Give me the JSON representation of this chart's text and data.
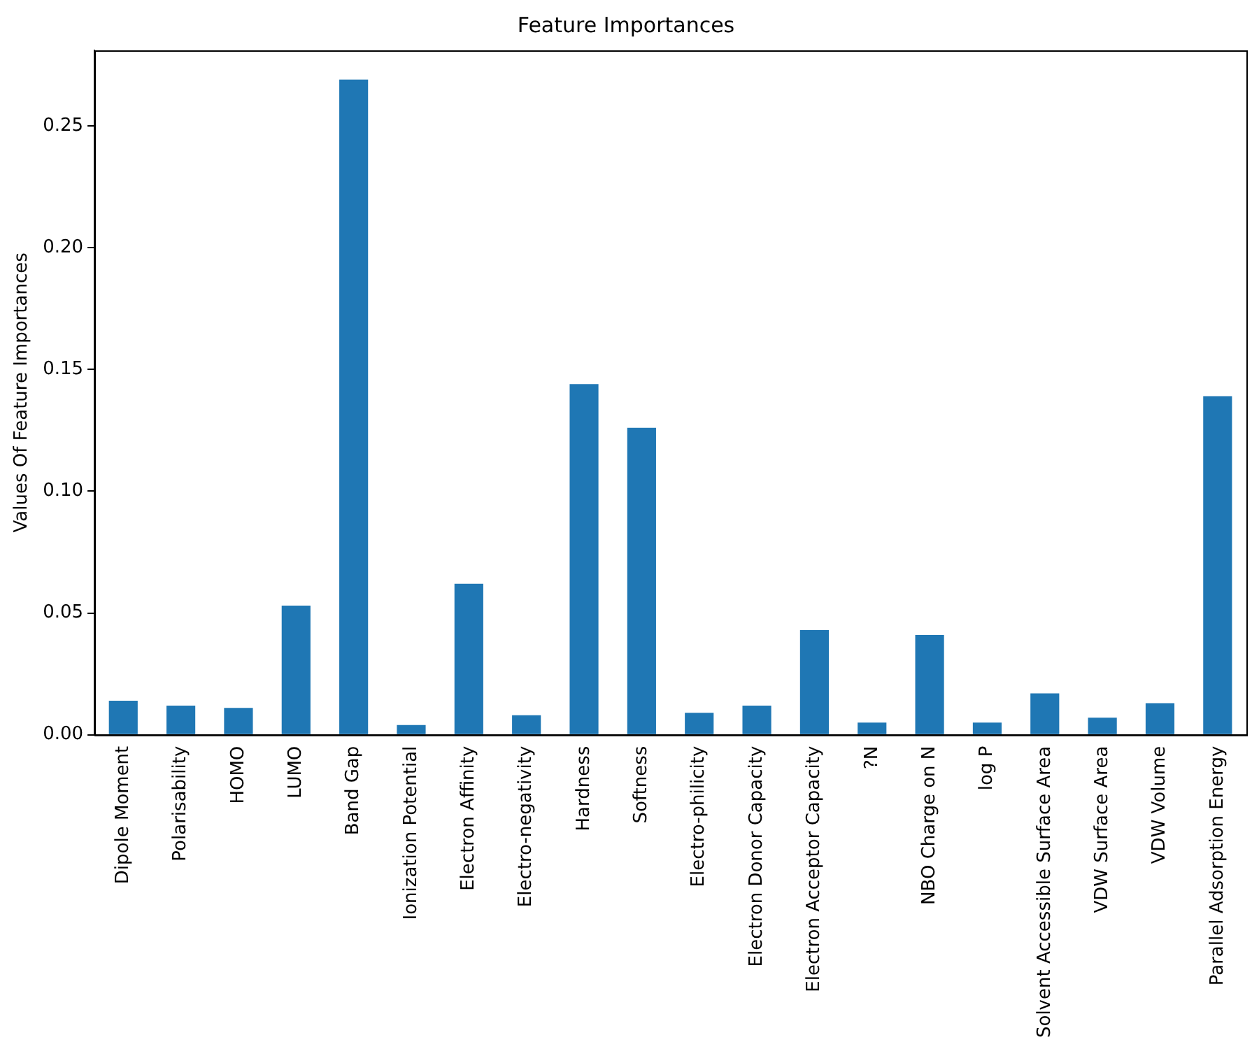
{
  "chart_data": {
    "type": "bar",
    "title": "Feature Importances",
    "ylabel": "Values Of Feature Importances",
    "categories": [
      "Dipole Moment",
      "Polarisability",
      "HOMO",
      "LUMO",
      "Band Gap",
      "Ionization Potential",
      "Electron Affinity",
      "Electro-negativity",
      "Hardness",
      "Softness",
      "Electro-philicity",
      "Electron Donor Capacity",
      "Electron Acceptor Capacity",
      "?N",
      "NBO Charge on N",
      "log P",
      "Solvent Accessible Surface Area",
      "VDW Surface Area",
      "VDW Volume",
      "Parallel Adsorption Energy"
    ],
    "values": [
      0.014,
      0.012,
      0.011,
      0.053,
      0.269,
      0.004,
      0.062,
      0.008,
      0.144,
      0.126,
      0.009,
      0.012,
      0.043,
      0.005,
      0.041,
      0.005,
      0.017,
      0.007,
      0.013,
      0.139
    ],
    "color": "#1f77b4",
    "ylim": [
      0,
      0.281
    ],
    "yticks": [
      {
        "value": 0,
        "label": "0.00"
      },
      {
        "value": 0.05,
        "label": "0.05"
      },
      {
        "value": 0.1,
        "label": "0.10"
      },
      {
        "value": 0.15,
        "label": "0.15"
      },
      {
        "value": 0.2,
        "label": "0.20"
      },
      {
        "value": 0.25,
        "label": "0.25"
      }
    ],
    "grid": false,
    "legend": false
  }
}
